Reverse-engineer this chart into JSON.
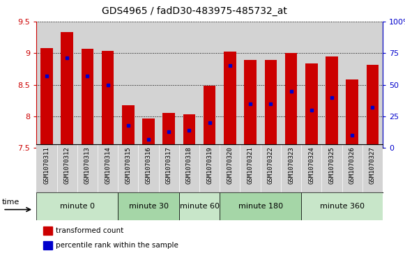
{
  "title": "GDS4965 / fadD30-483975-485732_at",
  "samples": [
    "GSM1070311",
    "GSM1070312",
    "GSM1070313",
    "GSM1070314",
    "GSM1070315",
    "GSM1070316",
    "GSM1070317",
    "GSM1070318",
    "GSM1070319",
    "GSM1070320",
    "GSM1070321",
    "GSM1070322",
    "GSM1070323",
    "GSM1070324",
    "GSM1070325",
    "GSM1070326",
    "GSM1070327"
  ],
  "bar_tops": [
    9.08,
    9.33,
    9.07,
    9.04,
    8.18,
    7.97,
    8.05,
    8.03,
    8.49,
    9.03,
    8.89,
    8.89,
    9.0,
    8.84,
    8.95,
    8.58,
    8.82
  ],
  "percentile_values": [
    57,
    71,
    57,
    50,
    18,
    7,
    13,
    14,
    20,
    65,
    35,
    35,
    45,
    30,
    40,
    10,
    32
  ],
  "ymin": 7.5,
  "ymax": 9.5,
  "bar_color": "#cc0000",
  "blue_color": "#0000cc",
  "bar_width": 0.6,
  "groups": [
    {
      "label": "minute 0",
      "indices": [
        0,
        1,
        2,
        3
      ]
    },
    {
      "label": "minute 30",
      "indices": [
        4,
        5,
        6
      ]
    },
    {
      "label": "minute 60",
      "indices": [
        7,
        8
      ]
    },
    {
      "label": "minute 180",
      "indices": [
        9,
        10,
        11,
        12
      ]
    },
    {
      "label": "minute 360",
      "indices": [
        13,
        14,
        15,
        16
      ]
    }
  ],
  "group_colors": [
    "#c8e6c9",
    "#a5d6a7",
    "#c8e6c9",
    "#a5d6a7",
    "#c8e6c9"
  ],
  "left_tick_color": "#cc0000",
  "right_tick_color": "#0000cc",
  "grid_color": "#000000",
  "axis_bg": "#d3d3d3",
  "xlabel_bg": "#d3d3d3"
}
